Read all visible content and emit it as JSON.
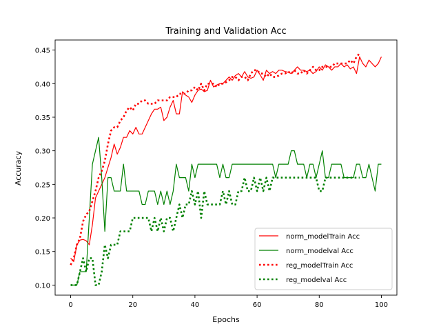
{
  "chart_data": {
    "type": "line",
    "title": "Training and Validation Acc",
    "xlabel": "Epochs",
    "ylabel": "Accuracy",
    "xlim": [
      -5,
      105
    ],
    "ylim": [
      0.085,
      0.465
    ],
    "xticks": [
      0,
      20,
      40,
      60,
      80,
      100
    ],
    "yticks": [
      0.1,
      0.15,
      0.2,
      0.25,
      0.3,
      0.35,
      0.4,
      0.45
    ],
    "grid": false,
    "legend_position": "lower-right",
    "series": [
      {
        "name": "norm_modelTrain Acc",
        "color": "#ff0000",
        "style": "solid",
        "x": [
          0,
          1,
          2,
          3,
          4,
          5,
          6,
          7,
          8,
          9,
          10,
          11,
          12,
          13,
          14,
          15,
          16,
          17,
          18,
          19,
          20,
          21,
          22,
          23,
          24,
          25,
          26,
          27,
          28,
          29,
          30,
          31,
          32,
          33,
          34,
          35,
          36,
          37,
          38,
          39,
          40,
          41,
          42,
          43,
          44,
          45,
          46,
          47,
          48,
          49,
          50,
          51,
          52,
          53,
          54,
          55,
          56,
          57,
          58,
          59,
          60,
          61,
          62,
          63,
          64,
          65,
          66,
          67,
          68,
          69,
          70,
          71,
          72,
          73,
          74,
          75,
          76,
          77,
          78,
          79,
          80,
          81,
          82,
          83,
          84,
          85,
          86,
          87,
          88,
          89,
          90,
          91,
          92,
          93,
          94,
          95,
          96,
          97,
          98,
          99,
          100
        ],
        "values": [
          0.14,
          0.135,
          0.16,
          0.167,
          0.168,
          0.166,
          0.16,
          0.19,
          0.23,
          0.24,
          0.25,
          0.26,
          0.275,
          0.29,
          0.31,
          0.295,
          0.305,
          0.32,
          0.32,
          0.33,
          0.325,
          0.335,
          0.325,
          0.325,
          0.335,
          0.345,
          0.355,
          0.362,
          0.362,
          0.365,
          0.345,
          0.35,
          0.365,
          0.375,
          0.355,
          0.355,
          0.388,
          0.383,
          0.38,
          0.372,
          0.383,
          0.39,
          0.392,
          0.388,
          0.39,
          0.405,
          0.395,
          0.398,
          0.4,
          0.4,
          0.405,
          0.41,
          0.405,
          0.412,
          0.415,
          0.41,
          0.418,
          0.41,
          0.408,
          0.41,
          0.42,
          0.413,
          0.405,
          0.42,
          0.415,
          0.418,
          0.415,
          0.42,
          0.42,
          0.418,
          0.417,
          0.415,
          0.42,
          0.425,
          0.42,
          0.42,
          0.418,
          0.42,
          0.415,
          0.418,
          0.425,
          0.42,
          0.428,
          0.425,
          0.42,
          0.425,
          0.425,
          0.43,
          0.425,
          0.428,
          0.422,
          0.425,
          0.415,
          0.44,
          0.43,
          0.425,
          0.435,
          0.43,
          0.425,
          0.43,
          0.44
        ]
      },
      {
        "name": "norm_modelval Acc",
        "color": "#008000",
        "style": "solid",
        "x": [
          0,
          1,
          2,
          3,
          4,
          5,
          6,
          7,
          8,
          9,
          10,
          11,
          12,
          13,
          14,
          15,
          16,
          17,
          18,
          19,
          20,
          21,
          22,
          23,
          24,
          25,
          26,
          27,
          28,
          29,
          30,
          31,
          32,
          33,
          34,
          35,
          36,
          37,
          38,
          39,
          40,
          41,
          42,
          43,
          44,
          45,
          46,
          47,
          48,
          49,
          50,
          51,
          52,
          53,
          54,
          55,
          56,
          57,
          58,
          59,
          60,
          61,
          62,
          63,
          64,
          65,
          66,
          67,
          68,
          69,
          70,
          71,
          72,
          73,
          74,
          75,
          76,
          77,
          78,
          79,
          80,
          81,
          82,
          83,
          84,
          85,
          86,
          87,
          88,
          89,
          90,
          91,
          92,
          93,
          94,
          95,
          96,
          97,
          98,
          99,
          100
        ],
        "values": [
          0.1,
          0.1,
          0.1,
          0.12,
          0.12,
          0.12,
          0.2,
          0.28,
          0.3,
          0.32,
          0.26,
          0.18,
          0.26,
          0.26,
          0.24,
          0.24,
          0.24,
          0.28,
          0.24,
          0.24,
          0.24,
          0.24,
          0.24,
          0.22,
          0.22,
          0.24,
          0.24,
          0.24,
          0.22,
          0.24,
          0.22,
          0.24,
          0.22,
          0.24,
          0.28,
          0.26,
          0.26,
          0.26,
          0.24,
          0.28,
          0.26,
          0.28,
          0.28,
          0.28,
          0.28,
          0.28,
          0.28,
          0.28,
          0.26,
          0.28,
          0.26,
          0.26,
          0.28,
          0.28,
          0.28,
          0.28,
          0.28,
          0.28,
          0.28,
          0.28,
          0.28,
          0.28,
          0.28,
          0.28,
          0.28,
          0.28,
          0.26,
          0.28,
          0.28,
          0.28,
          0.28,
          0.3,
          0.3,
          0.28,
          0.28,
          0.28,
          0.26,
          0.28,
          0.28,
          0.26,
          0.28,
          0.3,
          0.26,
          0.26,
          0.28,
          0.28,
          0.28,
          0.28,
          0.26,
          0.26,
          0.26,
          0.26,
          0.28,
          0.28,
          0.26,
          0.26,
          0.28,
          0.26,
          0.24,
          0.28,
          0.28
        ]
      },
      {
        "name": "reg_modelTrain Acc",
        "color": "#ff0000",
        "style": "dotted",
        "x": [
          0,
          1,
          2,
          3,
          4,
          5,
          6,
          7,
          8,
          9,
          10,
          11,
          12,
          13,
          14,
          15,
          16,
          17,
          18,
          19,
          20,
          21,
          22,
          23,
          24,
          25,
          26,
          27,
          28,
          29,
          30,
          31,
          32,
          33,
          34,
          35,
          36,
          37,
          38,
          39,
          40,
          41,
          42,
          43,
          44,
          45,
          46,
          47,
          48,
          49,
          50,
          51,
          52,
          53,
          54,
          55,
          56,
          57,
          58,
          59,
          60,
          61,
          62,
          63,
          64,
          65,
          66,
          67,
          68,
          69,
          70,
          71,
          72,
          73,
          74,
          75,
          76,
          77,
          78,
          79,
          80,
          81,
          82,
          83,
          84,
          85,
          86,
          87,
          88,
          89,
          90,
          91,
          92,
          93
        ],
        "values": [
          0.13,
          0.14,
          0.16,
          0.17,
          0.195,
          0.205,
          0.21,
          0.225,
          0.24,
          0.26,
          0.27,
          0.285,
          0.31,
          0.33,
          0.335,
          0.335,
          0.345,
          0.35,
          0.36,
          0.365,
          0.36,
          0.37,
          0.37,
          0.375,
          0.375,
          0.37,
          0.37,
          0.37,
          0.375,
          0.375,
          0.375,
          0.375,
          0.38,
          0.38,
          0.38,
          0.385,
          0.385,
          0.385,
          0.39,
          0.39,
          0.395,
          0.39,
          0.4,
          0.39,
          0.4,
          0.4,
          0.4,
          0.395,
          0.4,
          0.4,
          0.402,
          0.405,
          0.41,
          0.41,
          0.405,
          0.41,
          0.41,
          0.405,
          0.415,
          0.42,
          0.42,
          0.415,
          0.415,
          0.41,
          0.415,
          0.41,
          0.41,
          0.412,
          0.415,
          0.415,
          0.418,
          0.415,
          0.42,
          0.415,
          0.415,
          0.42,
          0.415,
          0.42,
          0.425,
          0.42,
          0.42,
          0.425,
          0.425,
          0.425,
          0.425,
          0.43,
          0.43,
          0.43,
          0.43,
          0.43,
          0.435,
          0.43,
          0.44,
          0.445
        ]
      },
      {
        "name": "reg_modelval Acc",
        "color": "#008000",
        "style": "dotted",
        "x": [
          0,
          1,
          2,
          3,
          4,
          5,
          6,
          7,
          8,
          9,
          10,
          11,
          12,
          13,
          14,
          15,
          16,
          17,
          18,
          19,
          20,
          21,
          22,
          23,
          24,
          25,
          26,
          27,
          28,
          29,
          30,
          31,
          32,
          33,
          34,
          35,
          36,
          37,
          38,
          39,
          40,
          41,
          42,
          43,
          44,
          45,
          46,
          47,
          48,
          49,
          50,
          51,
          52,
          53,
          54,
          55,
          56,
          57,
          58,
          59,
          60,
          61,
          62,
          63,
          64,
          65,
          66,
          67,
          68,
          69,
          70,
          71,
          72,
          73,
          74,
          75,
          76,
          77,
          78,
          79,
          80,
          81,
          82,
          83,
          84,
          85,
          86,
          87,
          88,
          89,
          90,
          91,
          92,
          93
        ],
        "values": [
          0.1,
          0.1,
          0.1,
          0.12,
          0.14,
          0.12,
          0.14,
          0.14,
          0.1,
          0.1,
          0.12,
          0.16,
          0.14,
          0.16,
          0.16,
          0.16,
          0.18,
          0.18,
          0.18,
          0.18,
          0.2,
          0.2,
          0.2,
          0.2,
          0.2,
          0.2,
          0.18,
          0.2,
          0.18,
          0.2,
          0.18,
          0.2,
          0.2,
          0.18,
          0.2,
          0.22,
          0.2,
          0.22,
          0.22,
          0.24,
          0.22,
          0.24,
          0.2,
          0.24,
          0.22,
          0.22,
          0.22,
          0.22,
          0.22,
          0.24,
          0.22,
          0.24,
          0.22,
          0.22,
          0.24,
          0.24,
          0.26,
          0.24,
          0.24,
          0.26,
          0.24,
          0.26,
          0.24,
          0.26,
          0.24,
          0.26,
          0.26,
          0.26,
          0.26,
          0.26,
          0.26,
          0.26,
          0.26,
          0.26,
          0.26,
          0.26,
          0.26,
          0.26,
          0.26,
          0.26,
          0.24,
          0.24,
          0.26,
          0.26,
          0.26,
          0.26,
          0.26,
          0.26,
          0.26,
          0.26,
          0.26,
          0.26,
          0.26,
          0.26
        ]
      }
    ]
  }
}
